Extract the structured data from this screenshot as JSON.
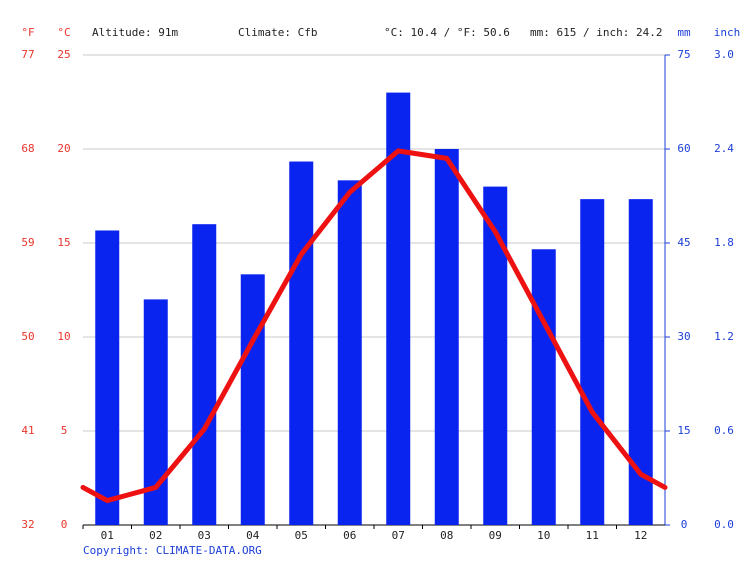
{
  "chart_data": {
    "type": "bar",
    "header": {
      "unit_f": "°F",
      "unit_c": "°C",
      "altitude": "Altitude: 91m",
      "climate": "Climate: Cfb",
      "temp_summary": "°C: 10.4 / °F: 50.6",
      "precip_summary": "mm: 615 / inch: 24.2",
      "unit_mm": "mm",
      "unit_inch": "inch"
    },
    "copyright": "Copyright: CLIMATE-DATA.ORG",
    "categories": [
      "01",
      "02",
      "03",
      "04",
      "05",
      "06",
      "07",
      "08",
      "09",
      "10",
      "11",
      "12"
    ],
    "ylim": [
      0,
      25
    ],
    "yticks": [
      0,
      5,
      10,
      15,
      20,
      25
    ],
    "ylim_f": [
      32,
      77
    ],
    "yticks_f": [
      32,
      41,
      50,
      59,
      68,
      77
    ],
    "y2lim": [
      0,
      75
    ],
    "y2ticks": [
      0,
      15,
      30,
      45,
      60,
      75
    ],
    "y2lim_inch": [
      0,
      3
    ],
    "y2ticks_inch": [
      {
        "value": 0,
        "label": "0.0"
      },
      0.6,
      1.2,
      1.8,
      2.4,
      {
        "value": 3,
        "label": "3.0"
      }
    ],
    "grid": true,
    "series": [
      {
        "type": "bar",
        "axis": "y2",
        "color": "#0a24f0",
        "values": [
          47,
          36,
          48,
          40,
          58,
          55,
          69,
          60,
          54,
          44,
          52,
          52
        ]
      },
      {
        "type": "line",
        "color": "#ee1111",
        "values": [
          1.3,
          2.0,
          5.1,
          9.8,
          14.4,
          17.7,
          19.9,
          19.5,
          15.6,
          10.8,
          6.0,
          2.7
        ]
      }
    ]
  }
}
